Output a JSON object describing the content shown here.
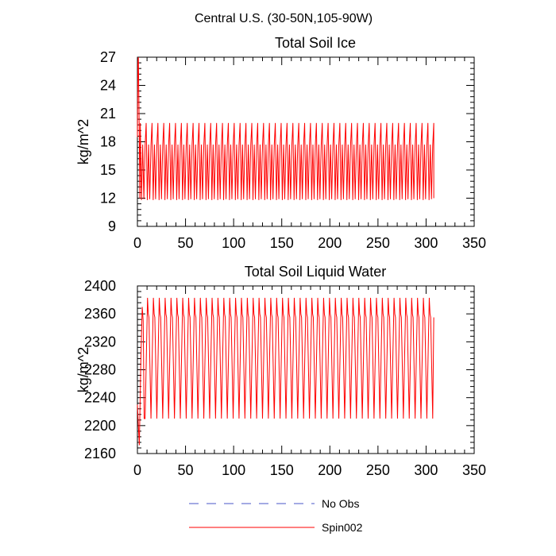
{
  "figure_title": "Central U.S. (30-50N,105-90W)",
  "legend": {
    "entries": [
      {
        "label": "No Obs",
        "color": "#4a55c8",
        "dash": true
      },
      {
        "label": "Spin002",
        "color": "#ff0000",
        "dash": false
      }
    ]
  },
  "chart_data": [
    {
      "type": "line",
      "title": "Total Soil Ice",
      "ylabel": "kg/m^2",
      "xlabel": "",
      "xlim": [
        0,
        350
      ],
      "ylim": [
        9,
        27
      ],
      "xticks": [
        0,
        50,
        100,
        150,
        200,
        250,
        300,
        350
      ],
      "yticks": [
        9,
        12,
        15,
        18,
        21,
        24,
        27
      ],
      "series": [
        {
          "name": "Spin002",
          "color": "#ff0000",
          "initial": [
            [
              0,
              18.5
            ],
            [
              0.5,
              26.5
            ],
            [
              1,
              27.0
            ],
            [
              1.8,
              20.0
            ],
            [
              2.5,
              12.0
            ]
          ],
          "cycle_start": 3,
          "cycle_end": 308,
          "period": 6.1,
          "cycle_pattern": [
            [
              0,
              20.0
            ],
            [
              1.2,
              11.8
            ],
            [
              2.5,
              17.7
            ],
            [
              3.7,
              11.9
            ],
            [
              5.0,
              17.6
            ],
            [
              6.1,
              20.0
            ]
          ],
          "end_value": 12.0
        }
      ]
    },
    {
      "type": "line",
      "title": "Total Soil Liquid Water",
      "ylabel": "kg/m^2",
      "xlabel": "",
      "xlim": [
        0,
        350
      ],
      "ylim": [
        2160,
        2400
      ],
      "xticks": [
        0,
        50,
        100,
        150,
        200,
        250,
        300,
        350
      ],
      "yticks": [
        2160,
        2200,
        2240,
        2280,
        2320,
        2360,
        2400
      ],
      "series": [
        {
          "name": "Spin002",
          "color": "#ff0000",
          "initial": [
            [
              0,
              2230
            ],
            [
              1,
              2200
            ],
            [
              2,
              2172
            ],
            [
              3.5,
              2290
            ],
            [
              5,
              2370
            ],
            [
              6,
              2350
            ],
            [
              7,
              2210
            ]
          ],
          "cycle_start": 8,
          "cycle_end": 308,
          "period": 6.1,
          "cycle_pattern": [
            [
              0,
              2210
            ],
            [
              2.5,
              2383
            ],
            [
              3.3,
              2360
            ],
            [
              4.0,
              2355
            ],
            [
              6.1,
              2210
            ]
          ],
          "end_value": 2355
        }
      ]
    }
  ]
}
